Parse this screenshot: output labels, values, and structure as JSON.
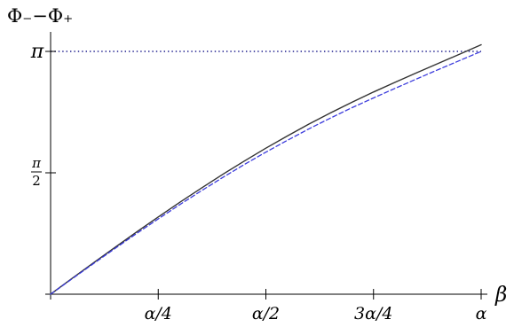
{
  "chart_data": {
    "type": "line",
    "title": "",
    "ylabel": "Φ₋−Φ₊",
    "xlabel": "β",
    "xlim": [
      0,
      1
    ],
    "ylim": [
      0,
      3.14159
    ],
    "grid": false,
    "x_ticks": [
      {
        "value": 0.25,
        "label": "α/4"
      },
      {
        "value": 0.5,
        "label": "α/2"
      },
      {
        "value": 0.75,
        "label": "3α/4"
      },
      {
        "value": 1.0,
        "label": "α"
      }
    ],
    "y_ticks": [
      {
        "value": 1.5708,
        "label_num": "π",
        "label_den": "2"
      },
      {
        "value": 3.14159,
        "label": "π"
      }
    ],
    "reference_line": {
      "y": 3.14159,
      "style": "dotted",
      "color": "#1a1a8c"
    },
    "series": [
      {
        "style": "solid",
        "color": "#333333",
        "x": [
          0,
          0.05,
          0.1,
          0.15,
          0.2,
          0.25,
          0.3,
          0.35,
          0.4,
          0.45,
          0.5,
          0.55,
          0.6,
          0.65,
          0.7,
          0.75,
          0.8,
          0.85,
          0.9,
          0.95,
          1.0
        ],
        "y": [
          0,
          0.205,
          0.408,
          0.608,
          0.806,
          1.0,
          1.189,
          1.373,
          1.551,
          1.723,
          1.889,
          2.048,
          2.201,
          2.346,
          2.484,
          2.616,
          2.742,
          2.865,
          2.986,
          3.106,
          3.228
        ]
      },
      {
        "style": "dashed",
        "color": "#3b3bdc",
        "x": [
          0,
          0.05,
          0.1,
          0.15,
          0.2,
          0.25,
          0.3,
          0.35,
          0.4,
          0.45,
          0.5,
          0.55,
          0.6,
          0.65,
          0.7,
          0.75,
          0.8,
          0.85,
          0.9,
          0.95,
          1.0
        ],
        "y": [
          0,
          0.2,
          0.398,
          0.594,
          0.786,
          0.975,
          1.159,
          1.338,
          1.511,
          1.678,
          1.838,
          1.992,
          2.139,
          2.279,
          2.413,
          2.54,
          2.664,
          2.785,
          2.905,
          3.024,
          3.142
        ]
      }
    ]
  }
}
